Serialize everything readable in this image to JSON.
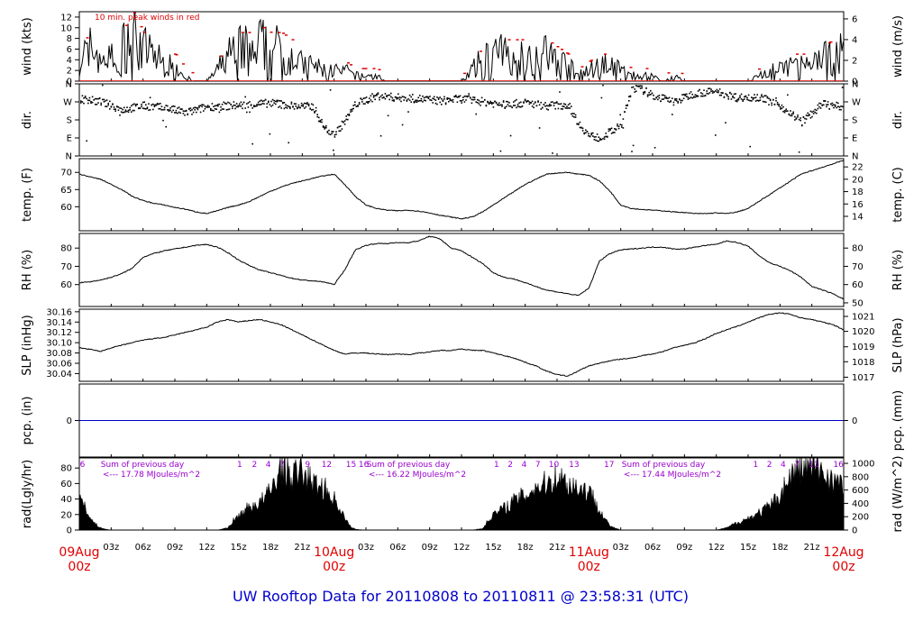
{
  "title": "UW Rooftop Data for 20110808  to  20110811 @ 23:58:31  (UTC)",
  "colors": {
    "red": "#e00000",
    "blue": "#0000cc",
    "purple": "#9900cc",
    "black": "#000000"
  },
  "x_axis": {
    "range_hours": [
      0,
      72
    ],
    "tick_labels": [
      "03z",
      "06z",
      "09z",
      "12z",
      "15z",
      "18z",
      "21z",
      "",
      "03z",
      "06z",
      "09z",
      "12z",
      "15z",
      "18z",
      "21z",
      "",
      "03z",
      "06z",
      "09z",
      "12z",
      "15z",
      "18z",
      "21z"
    ],
    "day_labels": [
      {
        "hour": 0,
        "date": "09Aug",
        "time": "00z"
      },
      {
        "hour": 24,
        "date": "10Aug",
        "time": "00z"
      },
      {
        "hour": 48,
        "date": "11Aug",
        "time": "00z"
      },
      {
        "hour": 72,
        "date": "12Aug",
        "time": "00z"
      }
    ]
  },
  "chart_data": [
    {
      "id": "wind",
      "type": "line",
      "ylabel": "wind (kts)",
      "ylabel_right": "wind (m/s)",
      "ylim": [
        0,
        13
      ],
      "ticks_left": [
        0,
        2,
        4,
        6,
        8,
        10,
        12
      ],
      "ticks_right": [
        "0",
        "2",
        "4",
        "6"
      ],
      "ticks_right_at": [
        0,
        3.89,
        7.78,
        11.66
      ],
      "annotation": "10 min. peak winds in red",
      "series": [
        {
          "name": "wind speed (kts)",
          "x": [
            0,
            1,
            2,
            3,
            4,
            5,
            6,
            7,
            8,
            9,
            10,
            11,
            12,
            13,
            14,
            15,
            16,
            17,
            18,
            19,
            20,
            21,
            22,
            23,
            24,
            25,
            26,
            27,
            28,
            29,
            30,
            31,
            32,
            33,
            34,
            35,
            36,
            37,
            38,
            39,
            40,
            41,
            42,
            43,
            44,
            45,
            46,
            47,
            48,
            49,
            50,
            51,
            52,
            53,
            54,
            55,
            56,
            57,
            58,
            59,
            60,
            61,
            62,
            63,
            64,
            65,
            66,
            67,
            68,
            69,
            70,
            71,
            72
          ],
          "values": [
            4,
            6,
            5,
            4,
            6,
            9,
            6,
            5,
            3,
            3,
            1,
            0,
            0,
            2,
            5,
            6,
            6,
            7,
            6,
            6,
            5,
            3,
            3,
            2,
            2,
            2,
            1,
            1,
            1,
            0,
            0,
            0,
            0,
            0,
            0,
            0,
            0,
            2,
            4,
            5,
            5,
            5,
            5,
            5,
            5,
            4,
            3,
            1,
            2,
            3,
            3,
            2,
            1,
            1,
            1,
            0,
            1,
            0,
            0,
            0,
            0,
            0,
            0,
            0,
            1,
            2,
            2,
            3,
            3,
            3,
            4,
            5,
            5
          ]
        }
      ]
    },
    {
      "id": "dir",
      "type": "scatter",
      "ylabel": "dir.",
      "ylabel_right": "dir.",
      "ylim": [
        0,
        360
      ],
      "tick_labels": [
        "N",
        "E",
        "S",
        "W",
        "N"
      ],
      "ticks_at": [
        0,
        90,
        180,
        270,
        360
      ],
      "series": [
        {
          "name": "wind direction (deg)",
          "x": [
            0,
            2,
            4,
            6,
            8,
            10,
            12,
            14,
            16,
            18,
            20,
            22,
            23,
            24,
            25,
            26,
            28,
            30,
            32,
            34,
            36,
            38,
            40,
            42,
            44,
            46,
            47,
            48,
            49,
            50,
            51,
            52,
            53,
            54,
            56,
            58,
            60,
            62,
            64,
            66,
            68,
            70,
            72
          ],
          "values": [
            285,
            270,
            230,
            250,
            240,
            215,
            245,
            250,
            255,
            265,
            250,
            245,
            140,
            110,
            175,
            260,
            300,
            290,
            285,
            275,
            285,
            270,
            255,
            265,
            250,
            255,
            160,
            100,
            90,
            120,
            150,
            340,
            330,
            300,
            270,
            315,
            320,
            290,
            295,
            250,
            170,
            260,
            240
          ]
        }
      ]
    },
    {
      "id": "temp",
      "type": "line",
      "ylabel": "temp. (F)",
      "ylabel_right": "temp. (C)",
      "ylim": [
        53,
        74
      ],
      "ticks_left": [
        60,
        65,
        70
      ],
      "ticks_right": [
        "14",
        "16",
        "18",
        "20",
        "22"
      ],
      "ticks_right_at": [
        57.2,
        60.8,
        64.4,
        68,
        71.6
      ],
      "series": [
        {
          "name": "temperature (F)",
          "x": [
            0,
            1,
            2,
            3,
            4,
            5,
            6,
            7,
            8,
            9,
            10,
            11,
            12,
            13,
            14,
            15,
            16,
            17,
            18,
            19,
            20,
            21,
            22,
            23,
            24,
            25,
            26,
            27,
            28,
            29,
            30,
            31,
            32,
            33,
            34,
            35,
            36,
            37,
            38,
            39,
            40,
            41,
            42,
            43,
            44,
            45,
            46,
            47,
            48,
            49,
            50,
            51,
            52,
            53,
            54,
            55,
            56,
            57,
            58,
            59,
            60,
            61,
            62,
            63,
            64,
            65,
            66,
            67,
            68,
            69,
            70,
            71,
            72
          ],
          "values": [
            69.5,
            68.7,
            68,
            66.5,
            65,
            63,
            61.8,
            61,
            60.5,
            59.8,
            59.3,
            58.5,
            58,
            58.8,
            59.8,
            60.5,
            61.5,
            63,
            64.5,
            65.7,
            66.8,
            67.5,
            68.3,
            69,
            69.5,
            66.5,
            63,
            60.5,
            59.5,
            59,
            58.8,
            59,
            58.7,
            58.2,
            57.5,
            57,
            56.5,
            57,
            58.5,
            60.5,
            62.5,
            64.5,
            66.5,
            68,
            69.5,
            69.8,
            70,
            69.5,
            69.2,
            67.5,
            64.5,
            60.5,
            59.5,
            59.2,
            59,
            58.8,
            58.5,
            58.3,
            58,
            58,
            58.2,
            58,
            58.5,
            59.5,
            61.5,
            63.5,
            65.5,
            67.5,
            69.5,
            70.5,
            71.5,
            72.5,
            73.5
          ]
        }
      ]
    },
    {
      "id": "rh",
      "type": "line",
      "ylabel": "RH (%)",
      "ylabel_right": "RH (%)",
      "ylim": [
        48,
        88
      ],
      "ticks_left": [
        60,
        70,
        80
      ],
      "ticks_right": [
        "50",
        "60",
        "70",
        "80"
      ],
      "ticks_right_at": [
        50,
        60,
        70,
        80
      ],
      "series": [
        {
          "name": "relative humidity (%)",
          "x": [
            0,
            1,
            2,
            3,
            4,
            5,
            6,
            7,
            8,
            9,
            10,
            11,
            12,
            13,
            14,
            15,
            16,
            17,
            18,
            19,
            20,
            21,
            22,
            23,
            24,
            25,
            26,
            27,
            28,
            29,
            30,
            31,
            32,
            33,
            34,
            35,
            36,
            37,
            38,
            39,
            40,
            41,
            42,
            43,
            44,
            45,
            46,
            47,
            48,
            49,
            50,
            51,
            52,
            53,
            54,
            55,
            56,
            57,
            58,
            59,
            60,
            61,
            62,
            63,
            64,
            65,
            66,
            67,
            68,
            69,
            70,
            71,
            72
          ],
          "values": [
            61,
            61.5,
            62.5,
            64,
            66,
            69,
            75,
            77,
            78.5,
            79.5,
            80.5,
            81.5,
            82,
            80.5,
            77.5,
            73.5,
            70.5,
            68,
            66.5,
            65,
            63.5,
            62.5,
            62,
            61.5,
            60,
            68,
            79,
            81.5,
            82.5,
            82.5,
            83,
            83,
            84,
            86.5,
            85,
            80,
            78.5,
            75,
            71.5,
            66.5,
            64,
            63,
            61,
            59,
            57,
            56,
            55,
            54,
            58,
            73,
            77,
            79,
            79.5,
            80,
            80.5,
            80.5,
            79.5,
            79.5,
            80.5,
            81.5,
            82,
            84,
            83,
            81,
            76,
            72,
            70,
            67.5,
            64,
            59,
            57,
            55,
            52
          ]
        }
      ]
    },
    {
      "id": "slp",
      "type": "line",
      "ylabel": "SLP (inHg)",
      "ylabel_right": "SLP (hPa)",
      "ylim": [
        30.025,
        30.165
      ],
      "ticks_left": [
        30.04,
        30.06,
        30.08,
        30.1,
        30.12,
        30.14,
        30.16
      ],
      "tick_format": "30.00",
      "ticks_right": [
        "1017",
        "1018",
        "1019",
        "1020",
        "1021"
      ],
      "ticks_right_at": [
        30.033,
        30.063,
        30.092,
        30.122,
        30.151
      ],
      "series": [
        {
          "name": "sea level pressure (inHg)",
          "x": [
            0,
            1,
            2,
            3,
            4,
            5,
            6,
            7,
            8,
            9,
            10,
            11,
            12,
            13,
            14,
            15,
            16,
            17,
            18,
            19,
            20,
            21,
            22,
            23,
            24,
            25,
            26,
            27,
            28,
            29,
            30,
            31,
            32,
            33,
            34,
            35,
            36,
            37,
            38,
            39,
            40,
            41,
            42,
            43,
            44,
            45,
            46,
            47,
            48,
            49,
            50,
            51,
            52,
            53,
            54,
            55,
            56,
            57,
            58,
            59,
            60,
            61,
            62,
            63,
            64,
            65,
            66,
            67,
            68,
            69,
            70,
            71,
            72
          ],
          "values": [
            30.09,
            30.087,
            30.083,
            30.09,
            30.095,
            30.1,
            30.105,
            30.108,
            30.11,
            30.115,
            30.12,
            30.125,
            30.13,
            30.14,
            30.145,
            30.14,
            30.143,
            30.145,
            30.14,
            30.135,
            30.125,
            30.115,
            30.105,
            30.095,
            30.085,
            30.078,
            30.08,
            30.08,
            30.078,
            30.077,
            30.078,
            30.077,
            30.08,
            30.082,
            30.085,
            30.085,
            30.088,
            30.085,
            30.085,
            30.08,
            30.075,
            30.07,
            30.062,
            30.055,
            30.045,
            30.038,
            30.035,
            30.045,
            30.055,
            30.06,
            30.065,
            30.068,
            30.07,
            30.075,
            30.078,
            30.083,
            30.09,
            30.095,
            30.1,
            30.108,
            30.118,
            30.125,
            30.132,
            30.14,
            30.148,
            30.155,
            30.158,
            30.155,
            30.148,
            30.145,
            30.14,
            30.135,
            30.125
          ]
        }
      ]
    },
    {
      "id": "pcp",
      "type": "line",
      "ylabel": "pcp. (in)",
      "ylabel_right": "pcp. (mm)",
      "ylim": [
        -1,
        1
      ],
      "ticks_left": [
        0
      ],
      "ticks_right": [
        "0"
      ],
      "ticks_right_at": [
        0
      ],
      "series": [
        {
          "name": "precipitation",
          "x": [
            0,
            72
          ],
          "values": [
            0,
            0
          ]
        }
      ]
    },
    {
      "id": "rad",
      "type": "area",
      "ylabel": "rad(Lgly/hr)",
      "ylabel_right": "rad (W/m^2)",
      "ylim": [
        0,
        93
      ],
      "ticks_left": [
        0,
        20,
        40,
        60,
        80
      ],
      "ticks_right": [
        "0",
        "200",
        "400",
        "600",
        "800",
        "1000"
      ],
      "ticks_right_at": [
        0,
        17.2,
        34.4,
        51.6,
        68.8,
        86
      ],
      "daily_sums": [
        {
          "text": "Sum of previous day",
          "value": "<--- 17.78 MJoules/m^2"
        },
        {
          "text": "Sum of previous day",
          "value": "<--- 16.22 MJoules/m^2"
        },
        {
          "text": "Sum of previous day",
          "value": "<--- 17.44 MJoules/m^2"
        }
      ],
      "hour_labels": [
        "6",
        "1",
        "2",
        "4",
        "7",
        "9",
        "12",
        "15",
        "16",
        "1",
        "2",
        "4",
        "7",
        "10",
        "13",
        "17",
        "1",
        "2",
        "4",
        "7",
        "11",
        "16"
      ],
      "hour_labels_at": [
        0.3,
        15.1,
        16.5,
        17.8,
        19.1,
        21.5,
        23.3,
        25.6,
        26.8,
        39.3,
        40.6,
        41.9,
        43.2,
        44.7,
        46.6,
        49.9,
        63.7,
        65,
        66.3,
        67.6,
        69.2,
        71.5
      ],
      "series": [
        {
          "name": "solar radiation (Lgly/hr)",
          "x": [
            0,
            0.5,
            1,
            1.5,
            2,
            2.5,
            3,
            13,
            14,
            14.5,
            15,
            16,
            17,
            18,
            19,
            20,
            21,
            22,
            23,
            24,
            24.5,
            25,
            25.5,
            26,
            27,
            37,
            38,
            38.5,
            39,
            40,
            41,
            42,
            43,
            44,
            45,
            46,
            47,
            48,
            49,
            49.5,
            50,
            51,
            60,
            61,
            62,
            63,
            64,
            65,
            66,
            67,
            68,
            69,
            70,
            71,
            72
          ],
          "values": [
            40,
            35,
            15,
            8,
            3,
            1,
            0,
            0,
            3,
            12,
            18,
            30,
            35,
            50,
            80,
            70,
            75,
            60,
            55,
            40,
            30,
            15,
            5,
            1,
            0,
            0,
            2,
            12,
            20,
            28,
            38,
            45,
            55,
            60,
            70,
            60,
            55,
            50,
            28,
            15,
            5,
            0,
            0,
            3,
            10,
            15,
            22,
            30,
            45,
            70,
            80,
            82,
            75,
            65,
            55
          ]
        }
      ]
    }
  ]
}
